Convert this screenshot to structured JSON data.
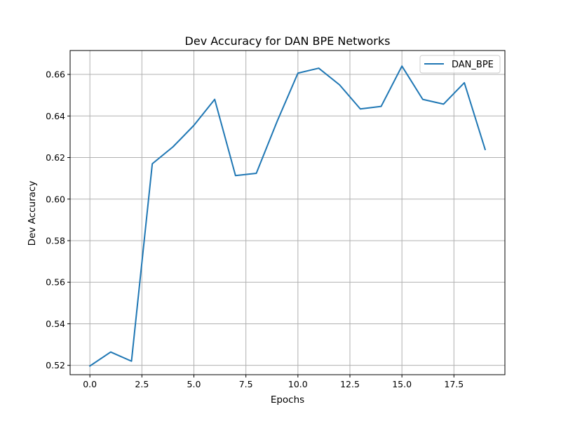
{
  "chart_data": {
    "type": "line",
    "title": "Dev Accuracy for DAN BPE Networks",
    "xlabel": "Epochs",
    "ylabel": "Dev Accuracy",
    "xlim": [
      -0.95,
      19.95
    ],
    "ylim": [
      0.5155,
      0.6715
    ],
    "xticks": [
      0,
      2.5,
      5,
      7.5,
      10,
      12.5,
      15,
      17.5
    ],
    "xtick_labels": [
      "0.0",
      "2.5",
      "5.0",
      "7.5",
      "10.0",
      "12.5",
      "15.0",
      "17.5"
    ],
    "yticks": [
      0.52,
      0.54,
      0.56,
      0.58,
      0.6,
      0.62,
      0.64,
      0.66
    ],
    "ytick_labels": [
      "0.52",
      "0.54",
      "0.56",
      "0.58",
      "0.60",
      "0.62",
      "0.64",
      "0.66"
    ],
    "grid": true,
    "legend_position": "top-right",
    "series": [
      {
        "name": "DAN_BPE",
        "color": "#1f77b4",
        "x": [
          0,
          1,
          2,
          3,
          4,
          5,
          6,
          7,
          8,
          9,
          10,
          11,
          12,
          13,
          14,
          15,
          16,
          17,
          18,
          19
        ],
        "y": [
          0.5197,
          0.5264,
          0.522,
          0.617,
          0.6252,
          0.6355,
          0.648,
          0.6113,
          0.6124,
          0.6374,
          0.6606,
          0.663,
          0.655,
          0.6434,
          0.6446,
          0.664,
          0.648,
          0.6457,
          0.656,
          0.6239
        ]
      }
    ]
  }
}
